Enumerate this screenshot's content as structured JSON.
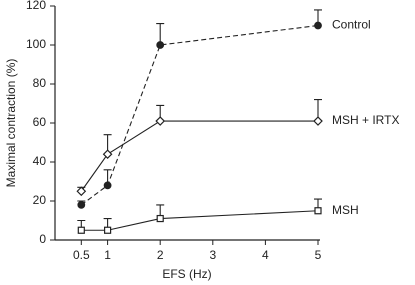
{
  "chart_data": {
    "type": "line",
    "x_label": "EFS (Hz)",
    "y_label": "Maximal contraction (%)",
    "x": [
      0.5,
      1,
      2,
      5
    ],
    "xlim": [
      0,
      5
    ],
    "xticks": [
      0.5,
      1,
      2,
      3,
      4,
      5
    ],
    "ylim": [
      0,
      120
    ],
    "yticks": [
      0,
      20,
      40,
      60,
      80,
      100,
      120
    ],
    "series": [
      {
        "name": "Control",
        "color": "#222222",
        "marker": "circle-filled",
        "dash": "dashed",
        "values": [
          18,
          28,
          100,
          110
        ],
        "errors": [
          2,
          8,
          11,
          8
        ]
      },
      {
        "name": "MSH + IRTX",
        "color": "#222222",
        "marker": "diamond-open",
        "dash": "solid",
        "values": [
          25,
          44,
          61,
          61
        ],
        "errors": [
          2,
          10,
          8,
          11
        ]
      },
      {
        "name": "MSH",
        "color": "#222222",
        "marker": "square-open",
        "dash": "solid",
        "values": [
          5,
          5,
          11,
          15
        ],
        "errors": [
          5,
          6,
          7,
          6
        ]
      }
    ]
  }
}
